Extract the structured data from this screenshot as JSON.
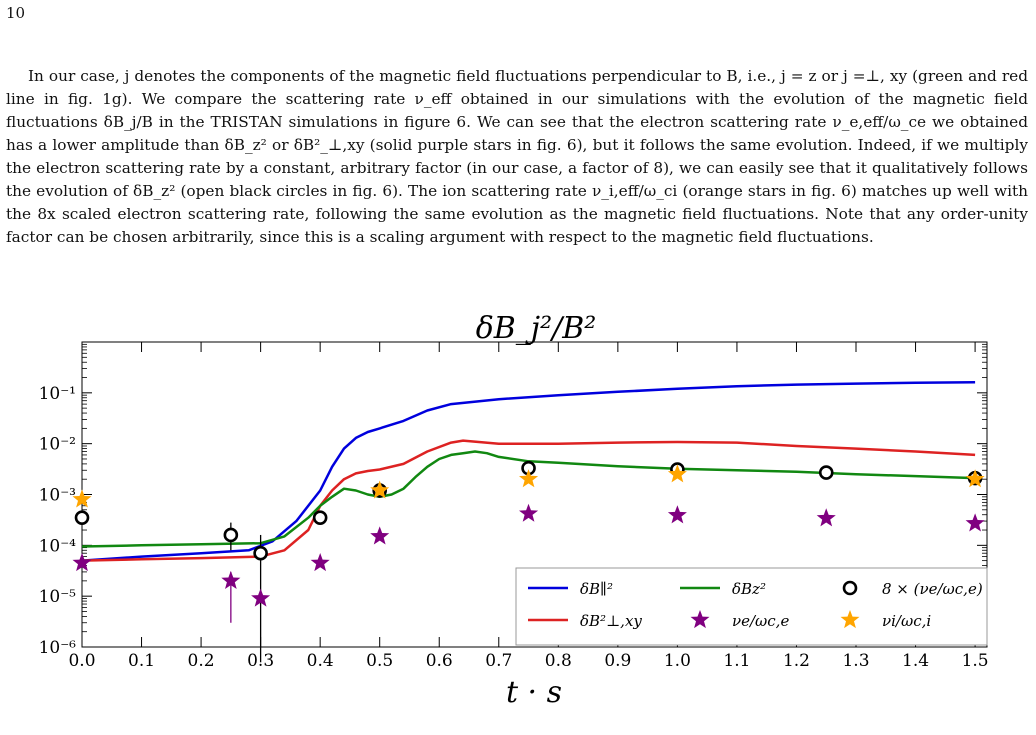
{
  "page": {
    "number": "10",
    "paragraph": "In our case, j denotes the components of the magnetic field fluctuations perpendicular to B, i.e., j = z or j =⊥, xy (green and red line in fig. 1g). We compare the scattering rate ν_eff obtained in our simulations with the evolution of the magnetic field fluctuations δB_j/B in the TRISTAN simulations in figure 6. We can see that the electron scattering rate ν_e,eff/ω_ce we obtained has a lower amplitude than δB_z² or δB²_⊥,xy (solid purple stars in fig. 6), but it follows the same evolution. Indeed, if we multiply the electron scattering rate by a constant, arbitrary factor (in our case, a factor of 8), we can easily see that it qualitatively follows the evolution of δB_z² (open black circles in fig. 6). The ion scattering rate ν_i,eff/ω_ci (orange stars in fig. 6) matches up well with the 8x scaled electron scattering rate, following the same evolution as the magnetic field fluctuations. Note that any order-unity factor can be chosen arbitrarily, since this is a scaling argument with respect to the magnetic field fluctuations."
  },
  "chart_data": {
    "type": "line",
    "title": "δB_j²/B²",
    "xlabel": "t · s",
    "ylabel": "",
    "xlim": [
      0.0,
      1.52
    ],
    "ylim": [
      1e-06,
      1
    ],
    "yscale": "log",
    "xticks": [
      "0.0",
      "0.1",
      "0.2",
      "0.3",
      "0.4",
      "0.5",
      "0.6",
      "0.7",
      "0.8",
      "0.9",
      "1.0",
      "1.1",
      "1.2",
      "1.3",
      "1.4",
      "1.5"
    ],
    "yticks": [
      "10⁻⁶",
      "10⁻⁵",
      "10⁻⁴",
      "10⁻³",
      "10⁻²",
      "10⁻¹"
    ],
    "legend_position": "bottom-right",
    "colors": {
      "blue": "#0000dd",
      "red": "#dd2222",
      "green": "#118811",
      "purple": "#800080",
      "orange": "#ffa500",
      "black": "#000000"
    },
    "series": [
      {
        "name": "δB∥²",
        "color": "#0000dd",
        "kind": "line",
        "x": [
          0.0,
          0.1,
          0.2,
          0.28,
          0.32,
          0.36,
          0.4,
          0.42,
          0.44,
          0.46,
          0.48,
          0.5,
          0.54,
          0.58,
          0.62,
          0.7,
          0.8,
          0.9,
          1.0,
          1.1,
          1.2,
          1.3,
          1.4,
          1.5
        ],
        "y": [
          5e-05,
          6e-05,
          7e-05,
          8e-05,
          0.00012,
          0.0003,
          0.0012,
          0.0035,
          0.008,
          0.013,
          0.017,
          0.02,
          0.028,
          0.045,
          0.06,
          0.075,
          0.09,
          0.105,
          0.12,
          0.135,
          0.145,
          0.152,
          0.158,
          0.162
        ]
      },
      {
        "name": "δB²⊥,xy",
        "color": "#dd2222",
        "kind": "line",
        "x": [
          0.0,
          0.1,
          0.2,
          0.3,
          0.34,
          0.38,
          0.4,
          0.42,
          0.44,
          0.46,
          0.48,
          0.5,
          0.54,
          0.58,
          0.62,
          0.64,
          0.7,
          0.8,
          0.9,
          1.0,
          1.1,
          1.2,
          1.3,
          1.4,
          1.5
        ],
        "y": [
          5e-05,
          5.3e-05,
          5.6e-05,
          6e-05,
          8e-05,
          0.0002,
          0.0006,
          0.0012,
          0.002,
          0.0026,
          0.0029,
          0.0031,
          0.004,
          0.007,
          0.0105,
          0.0115,
          0.01,
          0.01,
          0.0105,
          0.0108,
          0.0105,
          0.009,
          0.008,
          0.007,
          0.006
        ]
      },
      {
        "name": "δBz²",
        "color": "#118811",
        "kind": "line",
        "x": [
          0.0,
          0.1,
          0.2,
          0.3,
          0.34,
          0.38,
          0.4,
          0.42,
          0.44,
          0.46,
          0.48,
          0.5,
          0.52,
          0.54,
          0.56,
          0.58,
          0.6,
          0.62,
          0.64,
          0.66,
          0.68,
          0.7,
          0.75,
          0.8,
          0.9,
          1.0,
          1.1,
          1.2,
          1.3,
          1.4,
          1.5
        ],
        "y": [
          9.5e-05,
          0.0001,
          0.000105,
          0.00011,
          0.00015,
          0.00035,
          0.0006,
          0.0009,
          0.0013,
          0.0012,
          0.001,
          0.0009,
          0.001,
          0.0013,
          0.0022,
          0.0035,
          0.005,
          0.006,
          0.0065,
          0.007,
          0.0065,
          0.0055,
          0.0045,
          0.0042,
          0.0036,
          0.0032,
          0.003,
          0.0028,
          0.0025,
          0.0023,
          0.0021
        ]
      },
      {
        "name": "8 × (νe/ωc,e)",
        "color": "#000000",
        "kind": "circle",
        "x": [
          0.0,
          0.25,
          0.3,
          0.4,
          0.5,
          0.75,
          1.0,
          1.25,
          1.5
        ],
        "y": [
          0.00035,
          0.00016,
          7e-05,
          0.00035,
          0.0012,
          0.0033,
          0.0031,
          0.0027,
          0.0021
        ],
        "errors": [
          null,
          [
            8e-05,
            0.00028
          ],
          [
            5e-07,
            0.00016
          ],
          null,
          null,
          null,
          null,
          null,
          null
        ]
      },
      {
        "name": "νe/ωc,e",
        "color": "#800080",
        "kind": "star",
        "x": [
          0.0,
          0.25,
          0.3,
          0.4,
          0.5,
          0.75,
          1.0,
          1.25,
          1.5
        ],
        "y": [
          4.5e-05,
          2e-05,
          9e-06,
          4.5e-05,
          0.00015,
          0.00042,
          0.00039,
          0.00034,
          0.00027
        ],
        "errors": [
          null,
          [
            3e-06,
            3e-05
          ],
          null,
          null,
          null,
          null,
          null,
          null,
          null
        ]
      },
      {
        "name": "νi/ωc,i",
        "color": "#ffa500",
        "kind": "star",
        "x": [
          0.0,
          0.5,
          0.75,
          1.0,
          1.5
        ],
        "y": [
          0.0008,
          0.0012,
          0.002,
          0.0025,
          0.002
        ]
      }
    ]
  }
}
